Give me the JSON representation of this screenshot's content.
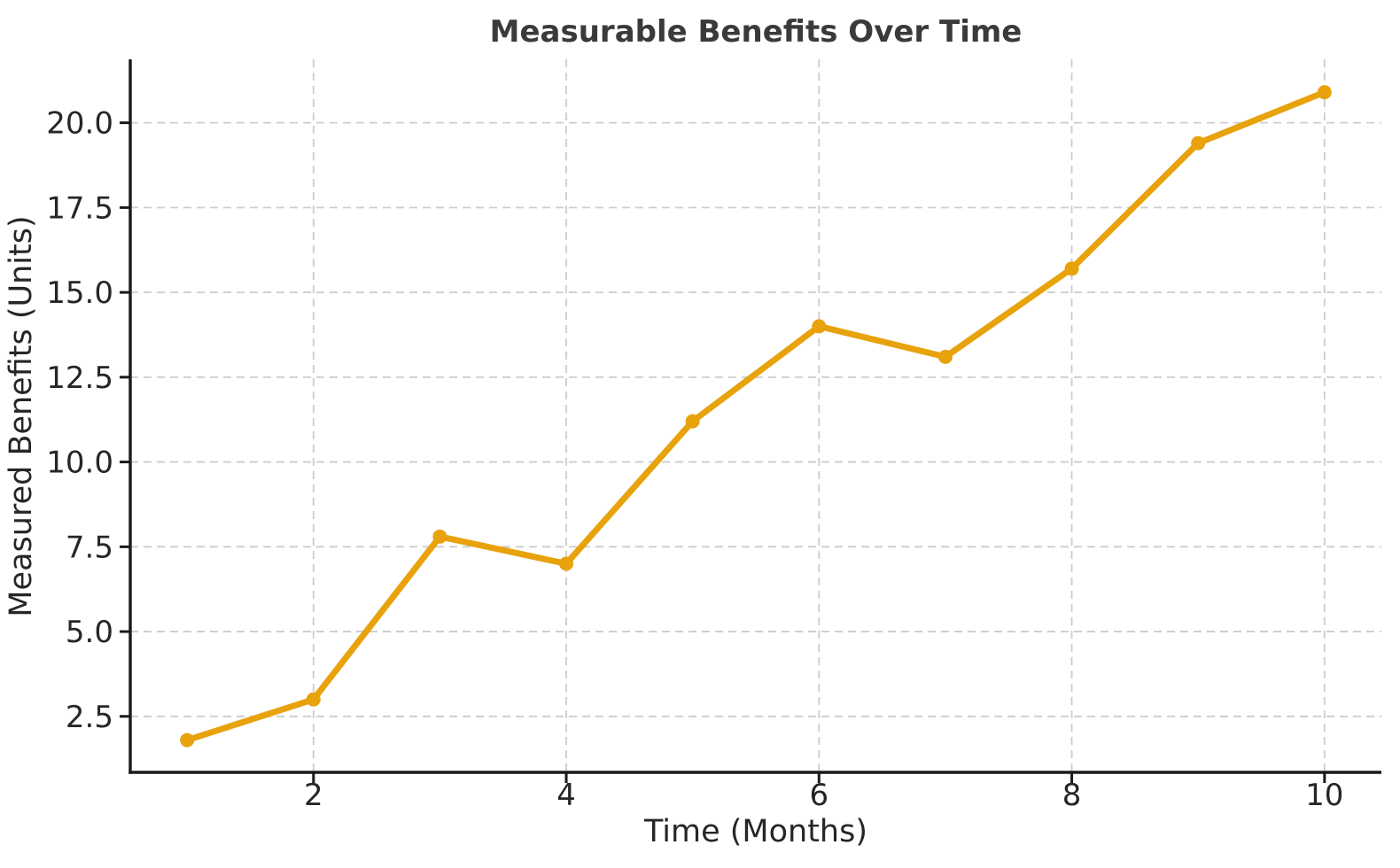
{
  "chart_data": {
    "type": "line",
    "title": "Measurable Benefits Over Time",
    "xlabel": "Time (Months)",
    "ylabel": "Measured Benefits (Units)",
    "x": [
      1,
      2,
      3,
      4,
      5,
      6,
      7,
      8,
      9,
      10
    ],
    "y": [
      1.8,
      3.0,
      7.8,
      7.0,
      11.2,
      14.0,
      13.1,
      15.7,
      19.4,
      20.9
    ],
    "xticks": [
      {
        "v": 2,
        "label": "2"
      },
      {
        "v": 4,
        "label": "4"
      },
      {
        "v": 6,
        "label": "6"
      },
      {
        "v": 8,
        "label": "8"
      },
      {
        "v": 10,
        "label": "10"
      }
    ],
    "yticks": [
      {
        "v": 2.5,
        "label": "2.5"
      },
      {
        "v": 5.0,
        "label": "5.0"
      },
      {
        "v": 7.5,
        "label": "7.5"
      },
      {
        "v": 10.0,
        "label": "10.0"
      },
      {
        "v": 12.5,
        "label": "12.5"
      },
      {
        "v": 15.0,
        "label": "15.0"
      },
      {
        "v": 17.5,
        "label": "17.5"
      },
      {
        "v": 20.0,
        "label": "20.0"
      }
    ],
    "xlim": [
      0.55,
      10.45
    ],
    "ylim": [
      0.85,
      21.87
    ],
    "grid": true,
    "grid_style": "dashed",
    "legend_position": "none",
    "marker": "circle",
    "colors": {
      "line": "#E8A20C",
      "marker": "#E8A20C",
      "grid": "#cccccc",
      "axis": "#1a1a1a",
      "text": "#262626",
      "title": "#3a3a3a",
      "background": "#ffffff"
    }
  }
}
